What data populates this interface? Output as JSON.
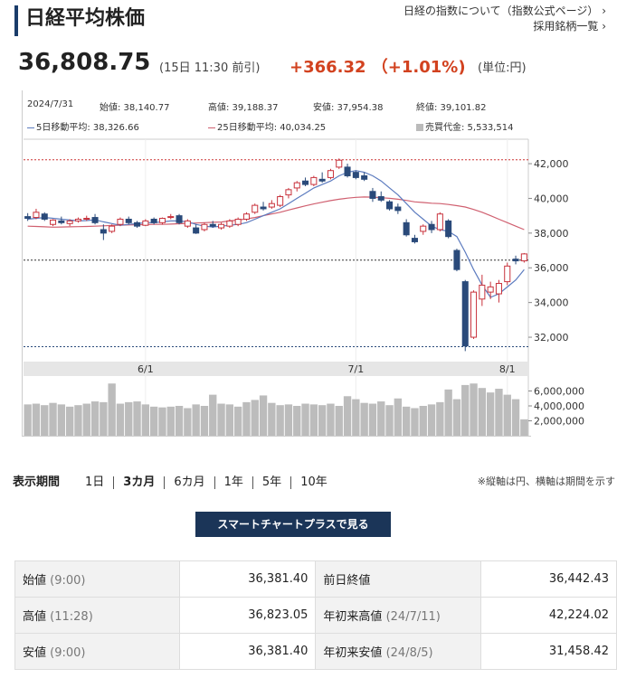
{
  "header": {
    "title": "日経平均株価",
    "link1": "日経の指数について（指数公式ページ）",
    "link2": "採用銘柄一覧"
  },
  "quote": {
    "price": "36,808.75",
    "time": "(15日 11:30 前引)",
    "change": "+366.32 （+1.01%)",
    "unit": "(単位:円)"
  },
  "info": {
    "date": "2024/7/31",
    "open": "始値: 38,140.77",
    "high": "高値: 39,188.37",
    "low": "安値: 37,954.38",
    "close": "終値: 39,101.82",
    "ma5": "5日移動平均: 38,326.66",
    "ma25": "25日移動平均: 40,034.25",
    "vol": "売買代金: 5,533,514"
  },
  "chart_data": {
    "type": "candlestick",
    "y_ticks": [
      "42,000",
      "40,000",
      "38,000",
      "36,000",
      "34,000",
      "32,000"
    ],
    "ylim": [
      30700,
      43200
    ],
    "x_labels": [
      "6/1",
      "7/1",
      "8/1"
    ],
    "volume_ticks": [
      "6,000,000",
      "4,000,000",
      "2,000,000"
    ],
    "vol_lim": [
      0,
      8000000
    ],
    "reference_lines": [
      42224.02,
      36442.43,
      31458.42
    ],
    "candles": [
      {
        "o": 38950,
        "h": 39150,
        "l": 38700,
        "c": 38850
      },
      {
        "o": 38900,
        "h": 39400,
        "l": 38800,
        "c": 39200
      },
      {
        "o": 39100,
        "h": 39200,
        "l": 38700,
        "c": 38800
      },
      {
        "o": 38500,
        "h": 38800,
        "l": 38400,
        "c": 38750
      },
      {
        "o": 38700,
        "h": 38950,
        "l": 38500,
        "c": 38600
      },
      {
        "o": 38550,
        "h": 38800,
        "l": 38400,
        "c": 38700
      },
      {
        "o": 38700,
        "h": 38900,
        "l": 38600,
        "c": 38800
      },
      {
        "o": 38800,
        "h": 39000,
        "l": 38700,
        "c": 38850
      },
      {
        "o": 38900,
        "h": 39100,
        "l": 38500,
        "c": 38600
      },
      {
        "o": 38200,
        "h": 38500,
        "l": 37600,
        "c": 38000
      },
      {
        "o": 38100,
        "h": 38500,
        "l": 38000,
        "c": 38400
      },
      {
        "o": 38500,
        "h": 38900,
        "l": 38400,
        "c": 38800
      },
      {
        "o": 38800,
        "h": 38950,
        "l": 38500,
        "c": 38600
      },
      {
        "o": 38600,
        "h": 38700,
        "l": 38300,
        "c": 38400
      },
      {
        "o": 38450,
        "h": 38800,
        "l": 38400,
        "c": 38700
      },
      {
        "o": 38800,
        "h": 38900,
        "l": 38500,
        "c": 38600
      },
      {
        "o": 38600,
        "h": 38900,
        "l": 38500,
        "c": 38850
      },
      {
        "o": 38900,
        "h": 39100,
        "l": 38800,
        "c": 38950
      },
      {
        "o": 39000,
        "h": 39100,
        "l": 38500,
        "c": 38600
      },
      {
        "o": 38400,
        "h": 38800,
        "l": 38300,
        "c": 38700
      },
      {
        "o": 38300,
        "h": 38500,
        "l": 37950,
        "c": 38000
      },
      {
        "o": 38200,
        "h": 38600,
        "l": 38100,
        "c": 38500
      },
      {
        "o": 38500,
        "h": 38700,
        "l": 38300,
        "c": 38400
      },
      {
        "o": 38300,
        "h": 38600,
        "l": 38200,
        "c": 38500
      },
      {
        "o": 38400,
        "h": 38800,
        "l": 38300,
        "c": 38700
      },
      {
        "o": 38500,
        "h": 38900,
        "l": 38400,
        "c": 38800
      },
      {
        "o": 38800,
        "h": 39200,
        "l": 38700,
        "c": 39100
      },
      {
        "o": 39200,
        "h": 39700,
        "l": 39100,
        "c": 39600
      },
      {
        "o": 39500,
        "h": 39800,
        "l": 39300,
        "c": 39400
      },
      {
        "o": 39500,
        "h": 39900,
        "l": 39400,
        "c": 39700
      },
      {
        "o": 39600,
        "h": 40200,
        "l": 39500,
        "c": 40100
      },
      {
        "o": 40200,
        "h": 40600,
        "l": 40000,
        "c": 40500
      },
      {
        "o": 40600,
        "h": 41000,
        "l": 40400,
        "c": 40900
      },
      {
        "o": 41000,
        "h": 41200,
        "l": 40700,
        "c": 40800
      },
      {
        "o": 40800,
        "h": 41300,
        "l": 40700,
        "c": 41200
      },
      {
        "o": 41100,
        "h": 41500,
        "l": 40900,
        "c": 41000
      },
      {
        "o": 41200,
        "h": 41700,
        "l": 41100,
        "c": 41600
      },
      {
        "o": 41800,
        "h": 42300,
        "l": 41700,
        "c": 42200
      },
      {
        "o": 41800,
        "h": 42000,
        "l": 41200,
        "c": 41300
      },
      {
        "o": 41500,
        "h": 41600,
        "l": 41100,
        "c": 41200
      },
      {
        "o": 41300,
        "h": 41500,
        "l": 41000,
        "c": 41100
      },
      {
        "o": 40400,
        "h": 40600,
        "l": 39800,
        "c": 40000
      },
      {
        "o": 40100,
        "h": 40400,
        "l": 39800,
        "c": 39900
      },
      {
        "o": 39800,
        "h": 39900,
        "l": 39300,
        "c": 39400
      },
      {
        "o": 39500,
        "h": 39700,
        "l": 39100,
        "c": 39300
      },
      {
        "o": 38600,
        "h": 38800,
        "l": 37800,
        "c": 37900
      },
      {
        "o": 37700,
        "h": 37900,
        "l": 37400,
        "c": 37500
      },
      {
        "o": 38100,
        "h": 38500,
        "l": 37900,
        "c": 38400
      },
      {
        "o": 38500,
        "h": 38700,
        "l": 38000,
        "c": 38200
      },
      {
        "o": 38200,
        "h": 39200,
        "l": 38100,
        "c": 39100
      },
      {
        "o": 38700,
        "h": 38800,
        "l": 37700,
        "c": 37800
      },
      {
        "o": 37000,
        "h": 37100,
        "l": 35800,
        "c": 35900
      },
      {
        "o": 35200,
        "h": 35300,
        "l": 31200,
        "c": 31500
      },
      {
        "o": 32000,
        "h": 34700,
        "l": 31900,
        "c": 34600
      },
      {
        "o": 34200,
        "h": 35600,
        "l": 33800,
        "c": 35000
      },
      {
        "o": 34600,
        "h": 35200,
        "l": 34200,
        "c": 34900
      },
      {
        "o": 34500,
        "h": 35300,
        "l": 34000,
        "c": 35100
      },
      {
        "o": 35200,
        "h": 36300,
        "l": 35000,
        "c": 36100
      },
      {
        "o": 36500,
        "h": 36700,
        "l": 36200,
        "c": 36400
      },
      {
        "o": 36400,
        "h": 36850,
        "l": 36300,
        "c": 36800
      }
    ],
    "ma5": [
      38800,
      38850,
      38900,
      38850,
      38800,
      38750,
      38700,
      38720,
      38760,
      38650,
      38550,
      38450,
      38500,
      38550,
      38600,
      38600,
      38650,
      38700,
      38700,
      38650,
      38500,
      38400,
      38350,
      38400,
      38450,
      38500,
      38600,
      38800,
      39000,
      39200,
      39400,
      39700,
      40000,
      40300,
      40600,
      40800,
      41000,
      41300,
      41500,
      41600,
      41500,
      41300,
      41000,
      40600,
      40200,
      39700,
      39200,
      38800,
      38400,
      38200,
      38100,
      37800,
      36900,
      35900,
      35000,
      34300,
      34500,
      34900,
      35300,
      35900
    ],
    "ma25": [
      38400,
      38380,
      38360,
      38340,
      38350,
      38360,
      38370,
      38380,
      38400,
      38420,
      38440,
      38450,
      38470,
      38480,
      38490,
      38500,
      38500,
      38520,
      38540,
      38560,
      38580,
      38600,
      38620,
      38640,
      38700,
      38750,
      38820,
      38900,
      39000,
      39100,
      39200,
      39330,
      39450,
      39570,
      39680,
      39780,
      39870,
      39950,
      40010,
      40060,
      40080,
      40070,
      40040,
      40000,
      39950,
      39880,
      39800,
      39760,
      39720,
      39700,
      39650,
      39580,
      39500,
      39360,
      39200,
      39000,
      38800,
      38600,
      38400,
      38200
    ],
    "volume": [
      4200000,
      4300000,
      4100000,
      4400000,
      4200000,
      3900000,
      4100000,
      4300000,
      4600000,
      4500000,
      7000000,
      4300000,
      4500000,
      4600000,
      4200000,
      3900000,
      3800000,
      3900000,
      4000000,
      3700000,
      4200000,
      4000000,
      5500000,
      4300000,
      4200000,
      3900000,
      4500000,
      4800000,
      5400000,
      4400000,
      4100000,
      4200000,
      4000000,
      4300000,
      4200000,
      4100000,
      4300000,
      4000000,
      5300000,
      4900000,
      4400000,
      4300000,
      4600000,
      4100000,
      5000000,
      3900000,
      3700000,
      4000000,
      4200000,
      4500000,
      6200000,
      4900000,
      6800000,
      7000000,
      6400000,
      5800000,
      6300000,
      5500000,
      4900000,
      2200000
    ]
  },
  "period": {
    "label": "表示期間",
    "items": [
      "1日",
      "3カ月",
      "6カ月",
      "1年",
      "5年",
      "10年"
    ],
    "note": "※縦軸は円、横軸は期間を示す"
  },
  "button": "スマートチャートプラスで見る",
  "table": [
    {
      "k1": "始値",
      "s1": "(9:00)",
      "v1": "36,381.40",
      "k2": "前日終値",
      "s2": "",
      "v2": "36,442.43"
    },
    {
      "k1": "高値",
      "s1": "(11:28)",
      "v1": "36,823.05",
      "k2": "年初来高値",
      "s2": "(24/7/11)",
      "v2": "42,224.02"
    },
    {
      "k1": "安値",
      "s1": "(9:00)",
      "v1": "36,381.40",
      "k2": "年初来安値",
      "s2": "(24/8/5)",
      "v2": "31,458.42"
    }
  ]
}
